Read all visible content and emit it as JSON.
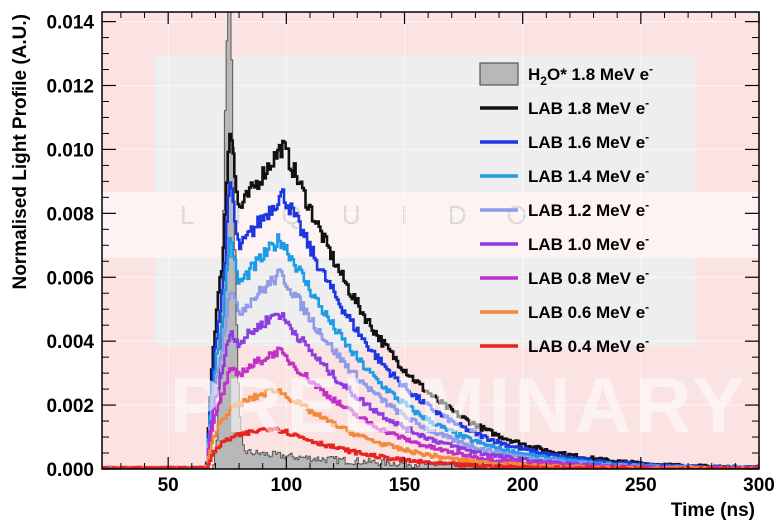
{
  "chart_data": {
    "type": "line",
    "style": "step-histogram",
    "xlabel": "Time (ns)",
    "ylabel": "Normalised Light Profile (A.U.)",
    "xlim": [
      22,
      300
    ],
    "ylim": [
      0,
      0.0143
    ],
    "xticks": [
      "50",
      "100",
      "150",
      "200",
      "250",
      "300"
    ],
    "yticks": [
      "0.000",
      "0.002",
      "0.004",
      "0.006",
      "0.008",
      "0.010",
      "0.012",
      "0.014"
    ],
    "legend_position": "top-right",
    "watermark": "PRELIMINARY",
    "series": [
      {
        "name": "H2O* 1.8 MeV e-",
        "label_parts": [
          "H",
          "2",
          "O* 1.8 MeV e",
          "-"
        ],
        "color": "#555555",
        "fill": "#b8b8b8",
        "kind": "filled",
        "onset": 66,
        "peak_time": 75.5,
        "peak": 0.0142,
        "rise": 3.2,
        "fall": 2.8,
        "tail": 0.0006,
        "tail_decay": 60
      },
      {
        "name": "LAB 1.8 MeV e-",
        "label_parts": [
          "LAB 1.8 MeV e",
          "-"
        ],
        "color": "#111111",
        "kind": "line",
        "onset": 66,
        "spike_time": 76,
        "spike": 0.0106,
        "hump_time": 98,
        "hump": 0.0101,
        "decay": 45
      },
      {
        "name": "LAB 1.6 MeV e-",
        "label_parts": [
          "LAB 1.6 MeV e",
          "-"
        ],
        "color": "#1c37e0",
        "kind": "line",
        "onset": 66,
        "spike_time": 76,
        "spike": 0.0088,
        "hump_time": 98,
        "hump": 0.0086,
        "decay": 44
      },
      {
        "name": "LAB 1.4 MeV e-",
        "label_parts": [
          "LAB 1.4 MeV e",
          "-"
        ],
        "color": "#1e9be8",
        "kind": "line",
        "onset": 66,
        "spike_time": 76,
        "spike": 0.0071,
        "hump_time": 97,
        "hump": 0.0072,
        "decay": 43
      },
      {
        "name": "LAB 1.2 MeV e-",
        "label_parts": [
          "LAB 1.2 MeV e",
          "-"
        ],
        "color": "#8f9ae8",
        "kind": "line",
        "onset": 66,
        "spike_time": 76,
        "spike": 0.0056,
        "hump_time": 97,
        "hump": 0.0061,
        "decay": 42
      },
      {
        "name": "LAB 1.0 MeV e-",
        "label_parts": [
          "LAB 1.0 MeV e",
          "-"
        ],
        "color": "#8b3de0",
        "kind": "line",
        "onset": 66,
        "spike_time": 76,
        "spike": 0.0042,
        "hump_time": 96,
        "hump": 0.0049,
        "decay": 42
      },
      {
        "name": "LAB 0.8 MeV e-",
        "label_parts": [
          "LAB 0.8 MeV e",
          "-"
        ],
        "color": "#c22fc7",
        "kind": "line",
        "onset": 66,
        "spike_time": 76,
        "spike": 0.003,
        "hump_time": 96,
        "hump": 0.0037,
        "decay": 41
      },
      {
        "name": "LAB 0.6 MeV e-",
        "label_parts": [
          "LAB 0.6 MeV e",
          "-"
        ],
        "color": "#f08a3c",
        "kind": "line",
        "onset": 66,
        "spike_time": 76,
        "spike": 0.0018,
        "hump_time": 95,
        "hump": 0.0025,
        "decay": 40
      },
      {
        "name": "LAB 0.4 MeV e-",
        "label_parts": [
          "LAB 0.4 MeV e",
          "-"
        ],
        "color": "#e8221f",
        "kind": "line",
        "onset": 66,
        "spike_time": 76,
        "spike": 0.0008,
        "hump_time": 94,
        "hump": 0.0013,
        "decay": 38
      }
    ]
  }
}
